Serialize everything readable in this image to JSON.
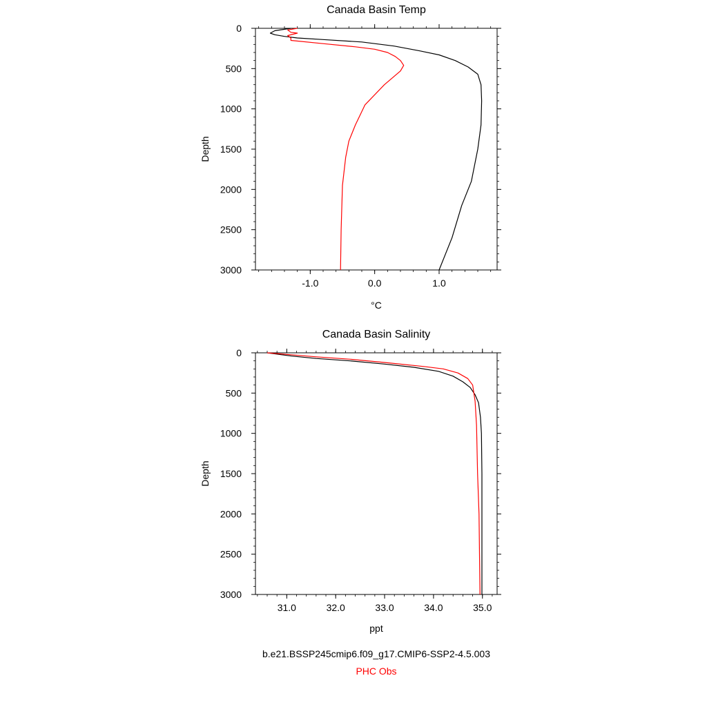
{
  "chart_data": [
    {
      "id": "temp",
      "type": "line",
      "title": "Canada Basin Temp",
      "xlabel": "°C",
      "ylabel": "Depth",
      "xlim": [
        -1.85,
        1.9
      ],
      "ylim": [
        3000,
        0
      ],
      "xticks": [
        {
          "v": -1.0,
          "label": "-1.0"
        },
        {
          "v": 0.0,
          "label": "0.0"
        },
        {
          "v": 1.0,
          "label": "1.0"
        }
      ],
      "yticks": [
        {
          "v": 0,
          "label": "0"
        },
        {
          "v": 500,
          "label": "500"
        },
        {
          "v": 1000,
          "label": "1000"
        },
        {
          "v": 1500,
          "label": "1500"
        },
        {
          "v": 2000,
          "label": "2000"
        },
        {
          "v": 2500,
          "label": "2500"
        },
        {
          "v": 3000,
          "label": "3000"
        }
      ],
      "series": [
        {
          "name": "b.e21.BSSP245cmip6.f09_g17.CMIP6-SSP2-4.5.003",
          "color": "#000000",
          "points": [
            [
              -1.3,
              0
            ],
            [
              -1.55,
              30
            ],
            [
              -1.62,
              60
            ],
            [
              -1.55,
              80
            ],
            [
              -1.4,
              100
            ],
            [
              -1.2,
              120
            ],
            [
              -0.8,
              140
            ],
            [
              -0.2,
              170
            ],
            [
              0.3,
              220
            ],
            [
              0.7,
              280
            ],
            [
              1.0,
              330
            ],
            [
              1.25,
              400
            ],
            [
              1.45,
              480
            ],
            [
              1.6,
              570
            ],
            [
              1.65,
              700
            ],
            [
              1.66,
              900
            ],
            [
              1.65,
              1200
            ],
            [
              1.6,
              1500
            ],
            [
              1.5,
              1900
            ],
            [
              1.35,
              2200
            ],
            [
              1.2,
              2600
            ],
            [
              1.0,
              3000
            ]
          ]
        },
        {
          "name": "PHC Obs",
          "color": "#ff0000",
          "points": [
            [
              -1.2,
              0
            ],
            [
              -1.35,
              20
            ],
            [
              -1.3,
              50
            ],
            [
              -1.2,
              60
            ],
            [
              -1.35,
              90
            ],
            [
              -1.3,
              120
            ],
            [
              -1.3,
              150
            ],
            [
              -0.8,
              190
            ],
            [
              -0.3,
              230
            ],
            [
              0.0,
              260
            ],
            [
              0.2,
              300
            ],
            [
              0.32,
              350
            ],
            [
              0.4,
              400
            ],
            [
              0.45,
              460
            ],
            [
              0.4,
              530
            ],
            [
              0.15,
              700
            ],
            [
              -0.15,
              950
            ],
            [
              -0.3,
              1200
            ],
            [
              -0.4,
              1400
            ],
            [
              -0.45,
              1600
            ],
            [
              -0.5,
              1950
            ],
            [
              -0.52,
              2500
            ],
            [
              -0.53,
              3000
            ]
          ]
        }
      ]
    },
    {
      "id": "sal",
      "type": "line",
      "title": "Canada Basin Salinity",
      "xlabel": "ppt",
      "ylabel": "Depth",
      "xlim": [
        30.36,
        35.3
      ],
      "ylim": [
        3000,
        0
      ],
      "xticks": [
        {
          "v": 31.0,
          "label": "31.0"
        },
        {
          "v": 32.0,
          "label": "32.0"
        },
        {
          "v": 33.0,
          "label": "33.0"
        },
        {
          "v": 34.0,
          "label": "34.0"
        },
        {
          "v": 35.0,
          "label": "35.0"
        }
      ],
      "yticks": [
        {
          "v": 0,
          "label": "0"
        },
        {
          "v": 500,
          "label": "500"
        },
        {
          "v": 1000,
          "label": "1000"
        },
        {
          "v": 1500,
          "label": "1500"
        },
        {
          "v": 2000,
          "label": "2000"
        },
        {
          "v": 2500,
          "label": "2500"
        },
        {
          "v": 3000,
          "label": "3000"
        }
      ],
      "series": [
        {
          "name": "b.e21.BSSP245cmip6.f09_g17.CMIP6-SSP2-4.5.003",
          "color": "#000000",
          "points": [
            [
              30.6,
              0
            ],
            [
              31.1,
              40
            ],
            [
              31.6,
              70
            ],
            [
              32.3,
              100
            ],
            [
              33.0,
              140
            ],
            [
              33.6,
              180
            ],
            [
              34.1,
              230
            ],
            [
              34.4,
              290
            ],
            [
              34.6,
              360
            ],
            [
              34.75,
              430
            ],
            [
              34.85,
              520
            ],
            [
              34.92,
              620
            ],
            [
              34.96,
              800
            ],
            [
              34.98,
              1000
            ],
            [
              34.99,
              1500
            ],
            [
              34.99,
              2000
            ],
            [
              34.99,
              3000
            ]
          ]
        },
        {
          "name": "PHC Obs",
          "color": "#ff0000",
          "points": [
            [
              30.6,
              0
            ],
            [
              31.0,
              20
            ],
            [
              31.6,
              50
            ],
            [
              32.3,
              80
            ],
            [
              33.0,
              120
            ],
            [
              33.8,
              170
            ],
            [
              34.2,
              200
            ],
            [
              34.5,
              250
            ],
            [
              34.7,
              320
            ],
            [
              34.8,
              400
            ],
            [
              34.85,
              600
            ],
            [
              34.88,
              900
            ],
            [
              34.9,
              1500
            ],
            [
              34.93,
              2000
            ],
            [
              34.95,
              3000
            ]
          ]
        }
      ]
    }
  ],
  "legend": {
    "model_label": "b.e21.BSSP245cmip6.f09_g17.CMIP6-SSP2-4.5.003",
    "obs_label": "PHC Obs",
    "model_color": "#000000",
    "obs_color": "#ff0000"
  }
}
